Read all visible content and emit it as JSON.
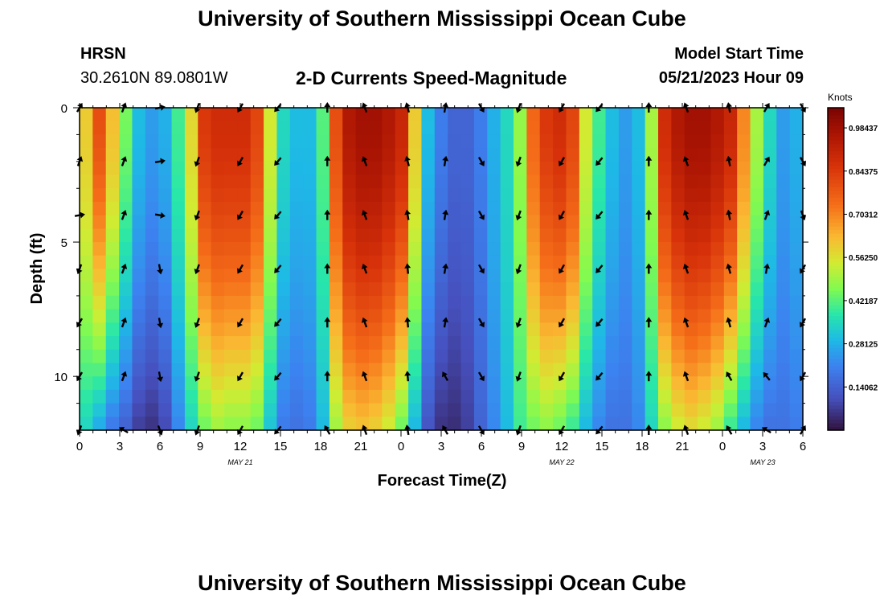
{
  "page": {
    "title": "University of Southern Mississippi Ocean Cube",
    "station": "HRSN",
    "coords": "30.2610N  89.0801W",
    "subtitle": "2-D Currents Speed-Magnitude",
    "model_start_label": "Model Start Time",
    "model_start_value": "05/21/2023 Hour 09",
    "second_title": "University of Southern Mississippi Ocean Cube"
  },
  "chart_data": {
    "type": "heatmap",
    "title": "2-D Currents Speed-Magnitude",
    "xlabel": "Forecast Time(Z)",
    "ylabel": "Depth (ft)",
    "x_tick_labels": [
      "0",
      "3",
      "6",
      "9",
      "12",
      "15",
      "18",
      "21",
      "0",
      "3",
      "6",
      "9",
      "12",
      "15",
      "18",
      "21",
      "0",
      "3",
      "6"
    ],
    "x_range_hours": [
      0,
      54
    ],
    "y_ticks": [
      0,
      5,
      10
    ],
    "y_range_ft": [
      0,
      12
    ],
    "date_labels": [
      {
        "text": "MAY 21",
        "hour": 12
      },
      {
        "text": "MAY 22",
        "hour": 36
      },
      {
        "text": "MAY 23",
        "hour": 51
      }
    ],
    "colorbar": {
      "label": "Knots",
      "range": [
        0.0,
        1.05
      ],
      "ticks": [
        0.98437,
        0.84375,
        0.70312,
        0.5625,
        0.42187,
        0.28125,
        0.14062
      ],
      "tick_labels": [
        "0.98437",
        "0.84375",
        "0.70312",
        "0.56250",
        "0.42187",
        "0.28125",
        "0.14062"
      ]
    },
    "speed_profile": {
      "hours": [
        0,
        1,
        2,
        3,
        4,
        5,
        6,
        7,
        8,
        9,
        10,
        11,
        12,
        13,
        14,
        15,
        16,
        17,
        18,
        19,
        20,
        21,
        22,
        23,
        24,
        25,
        26,
        27,
        28,
        29,
        30,
        31,
        32,
        33,
        34,
        35,
        36,
        37,
        38,
        39,
        40,
        41,
        42,
        43,
        44,
        45,
        46,
        47,
        48,
        49,
        50,
        51,
        52,
        53,
        54
      ],
      "surface_knots": [
        0.6,
        0.8,
        0.62,
        0.45,
        0.3,
        0.25,
        0.28,
        0.4,
        0.58,
        0.85,
        0.88,
        0.88,
        0.88,
        0.82,
        0.55,
        0.35,
        0.3,
        0.3,
        0.42,
        0.8,
        0.95,
        0.98,
        0.98,
        0.95,
        0.9,
        0.6,
        0.3,
        0.2,
        0.15,
        0.15,
        0.2,
        0.28,
        0.35,
        0.48,
        0.75,
        0.85,
        0.88,
        0.82,
        0.55,
        0.4,
        0.3,
        0.25,
        0.3,
        0.5,
        0.88,
        0.95,
        0.98,
        0.98,
        0.95,
        0.9,
        0.7,
        0.5,
        0.35,
        0.25,
        0.28
      ],
      "bottom_knots": [
        0.35,
        0.28,
        0.2,
        0.15,
        0.08,
        0.06,
        0.1,
        0.22,
        0.35,
        0.45,
        0.5,
        0.48,
        0.48,
        0.45,
        0.32,
        0.2,
        0.18,
        0.2,
        0.3,
        0.5,
        0.6,
        0.62,
        0.6,
        0.55,
        0.45,
        0.3,
        0.12,
        0.06,
        0.05,
        0.08,
        0.15,
        0.22,
        0.3,
        0.4,
        0.45,
        0.48,
        0.45,
        0.4,
        0.3,
        0.22,
        0.18,
        0.18,
        0.22,
        0.35,
        0.48,
        0.55,
        0.58,
        0.55,
        0.5,
        0.4,
        0.3,
        0.22,
        0.18,
        0.18,
        0.2
      ]
    },
    "vectors": {
      "hours": [
        0,
        3.3,
        6,
        8.8,
        12,
        14.8,
        18.5,
        21.3,
        24.5,
        27.3,
        30,
        32.8,
        36,
        38.8,
        42.5,
        45.3,
        48.5,
        51.3,
        54
      ],
      "depths_ft": [
        0,
        2,
        4,
        6,
        8,
        10,
        12
      ],
      "directions_deg": [
        [
          30,
          20,
          80,
          200,
          210,
          210,
          200
        ],
        [
          20,
          20,
          20,
          20,
          20,
          20,
          300
        ],
        [
          80,
          80,
          100,
          170,
          170,
          170,
          160
        ],
        [
          200,
          200,
          200,
          200,
          200,
          200,
          200
        ],
        [
          210,
          210,
          210,
          210,
          210,
          210,
          210
        ],
        [
          220,
          220,
          220,
          220,
          220,
          220,
          220
        ],
        [
          0,
          0,
          0,
          0,
          0,
          0,
          330
        ],
        [
          340,
          340,
          340,
          340,
          340,
          340,
          340
        ],
        [
          345,
          345,
          350,
          355,
          355,
          355,
          350
        ],
        [
          10,
          10,
          10,
          10,
          10,
          330,
          330
        ],
        [
          150,
          150,
          150,
          150,
          150,
          150,
          150
        ],
        [
          200,
          200,
          200,
          200,
          200,
          200,
          200
        ],
        [
          210,
          210,
          210,
          210,
          210,
          210,
          210
        ],
        [
          220,
          220,
          220,
          220,
          220,
          220,
          220
        ],
        [
          0,
          0,
          0,
          0,
          0,
          0,
          0
        ],
        [
          340,
          340,
          340,
          340,
          340,
          340,
          340
        ],
        [
          350,
          350,
          350,
          345,
          345,
          330,
          330
        ],
        [
          30,
          30,
          20,
          10,
          20,
          320,
          300
        ],
        [
          150,
          150,
          160,
          210,
          210,
          210,
          30
        ]
      ]
    }
  }
}
